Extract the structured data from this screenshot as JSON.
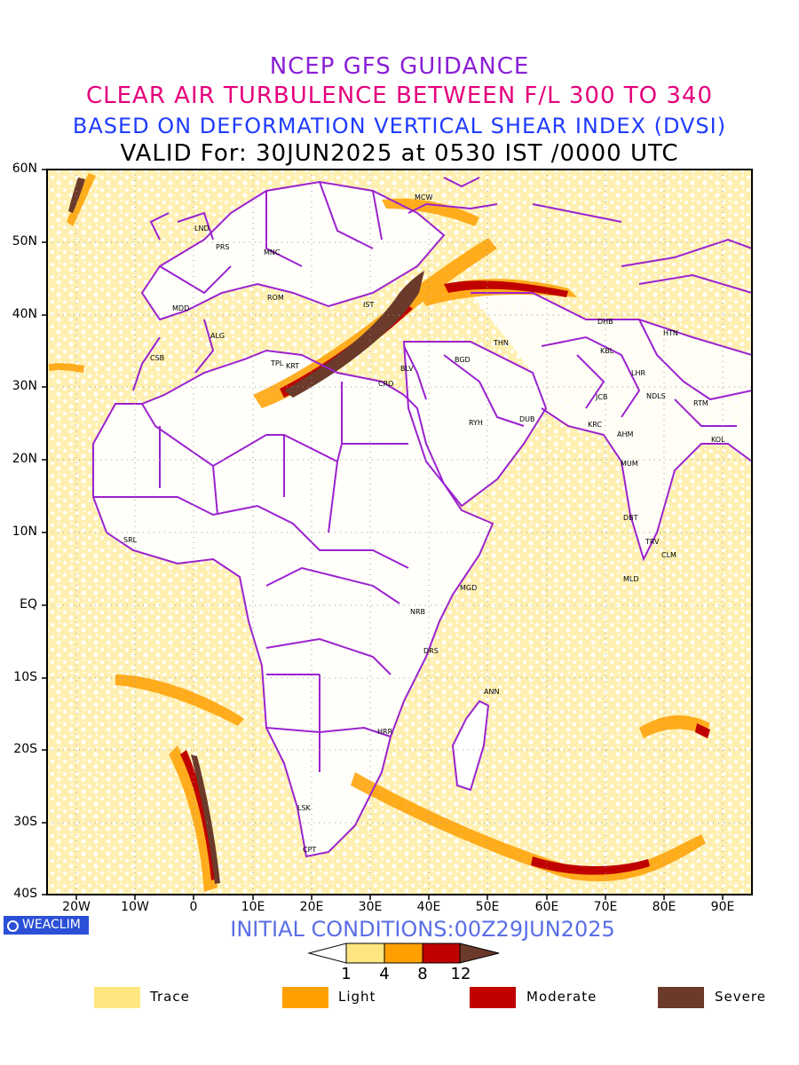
{
  "titles": {
    "line1": "NCEP GFS GUIDANCE",
    "line2": "CLEAR AIR TURBULENCE BETWEEN F/L 300 TO 340",
    "line3": "BASED ON DEFORMATION VERTICAL SHEAR INDEX (DVSI)",
    "line4": "VALID For: 30JUN2025 at 0530 IST /0000 UTC"
  },
  "axes": {
    "lat_labels": [
      "60N",
      "50N",
      "40N",
      "30N",
      "20N",
      "10N",
      "EQ",
      "10S",
      "20S",
      "30S",
      "40S"
    ],
    "lon_labels": [
      "20W",
      "10W",
      "0",
      "10E",
      "20E",
      "30E",
      "40E",
      "50E",
      "60E",
      "70E",
      "80E",
      "90E"
    ]
  },
  "cities": [
    {
      "code": "MCW"
    },
    {
      "code": "LND"
    },
    {
      "code": "PRS"
    },
    {
      "code": "MNC"
    },
    {
      "code": "ROM"
    },
    {
      "code": "IST"
    },
    {
      "code": "MDD"
    },
    {
      "code": "ALG"
    },
    {
      "code": "CSB"
    },
    {
      "code": "TPL"
    },
    {
      "code": "KRT"
    },
    {
      "code": "BLV"
    },
    {
      "code": "CRO"
    },
    {
      "code": "BGD"
    },
    {
      "code": "THN"
    },
    {
      "code": "DHB"
    },
    {
      "code": "HTN"
    },
    {
      "code": "KBL"
    },
    {
      "code": "LHR"
    },
    {
      "code": "JCB"
    },
    {
      "code": "NDLS"
    },
    {
      "code": "RTM"
    },
    {
      "code": "KRC"
    },
    {
      "code": "AHM"
    },
    {
      "code": "KOL"
    },
    {
      "code": "RYH"
    },
    {
      "code": "DUB"
    },
    {
      "code": "MUM"
    },
    {
      "code": "DBT"
    },
    {
      "code": "TRV"
    },
    {
      "code": "CLM"
    },
    {
      "code": "MLD"
    },
    {
      "code": "SRL"
    },
    {
      "code": "MGD"
    },
    {
      "code": "NRB"
    },
    {
      "code": "DRS"
    },
    {
      "code": "ANN"
    },
    {
      "code": "HRR"
    },
    {
      "code": "LSK"
    },
    {
      "code": "CPT"
    }
  ],
  "logo": "WEACLIM",
  "initial_conditions": "INITIAL CONDITIONS:00Z29JUN2025",
  "colorbar": {
    "ticks": [
      "1",
      "4",
      "8",
      "12"
    ],
    "colors": [
      "#ffffff",
      "#ffe680",
      "#ffa000",
      "#c00000",
      "#6b3a2a"
    ]
  },
  "legend": [
    {
      "label": "Trace",
      "color": "#ffe680"
    },
    {
      "label": "Light",
      "color": "#ffa000"
    },
    {
      "label": "Moderate",
      "color": "#c00000"
    },
    {
      "label": "Severe",
      "color": "#6b3a2a"
    }
  ]
}
